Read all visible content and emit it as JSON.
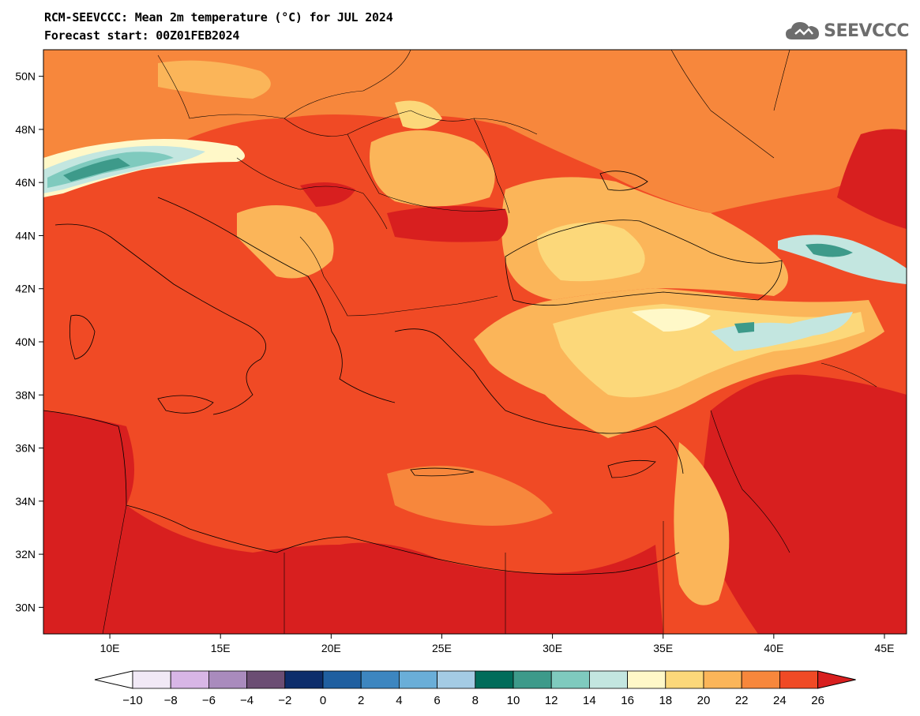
{
  "title": {
    "line1": "RCM-SEEVCCC: Mean 2m temperature (°C) for JUL 2024",
    "line2": "Forecast start: 00Z01FEB2024"
  },
  "logo": {
    "text": "SEEVCCC",
    "icon": "cloud-icon"
  },
  "map": {
    "lon_range": [
      7,
      46
    ],
    "lat_range": [
      29,
      51
    ],
    "lat_ticks": [
      "30N",
      "32N",
      "34N",
      "36N",
      "38N",
      "40N",
      "42N",
      "44N",
      "46N",
      "48N",
      "50N"
    ],
    "lon_ticks": [
      "10E",
      "15E",
      "20E",
      "25E",
      "30E",
      "35E",
      "40E",
      "45E"
    ]
  },
  "colorbar": {
    "labels": [
      "-10",
      "-8",
      "-6",
      "-4",
      "-2",
      "0",
      "2",
      "4",
      "6",
      "8",
      "10",
      "12",
      "14",
      "16",
      "18",
      "20",
      "22",
      "24",
      "26"
    ],
    "colors": [
      "#f1e9f6",
      "#d8b6e6",
      "#a98bbd",
      "#6b4d73",
      "#0d2d6b",
      "#1f5fa0",
      "#3d86c0",
      "#6aaed8",
      "#a4cbe4",
      "#006c5a",
      "#3d9a8a",
      "#7fcabe",
      "#c3e6e0",
      "#fff8c8",
      "#fcd87a",
      "#fbb559",
      "#f7873c",
      "#f04a25"
    ],
    "low_color": "#ffffff",
    "high_color": "#d81f1f"
  }
}
